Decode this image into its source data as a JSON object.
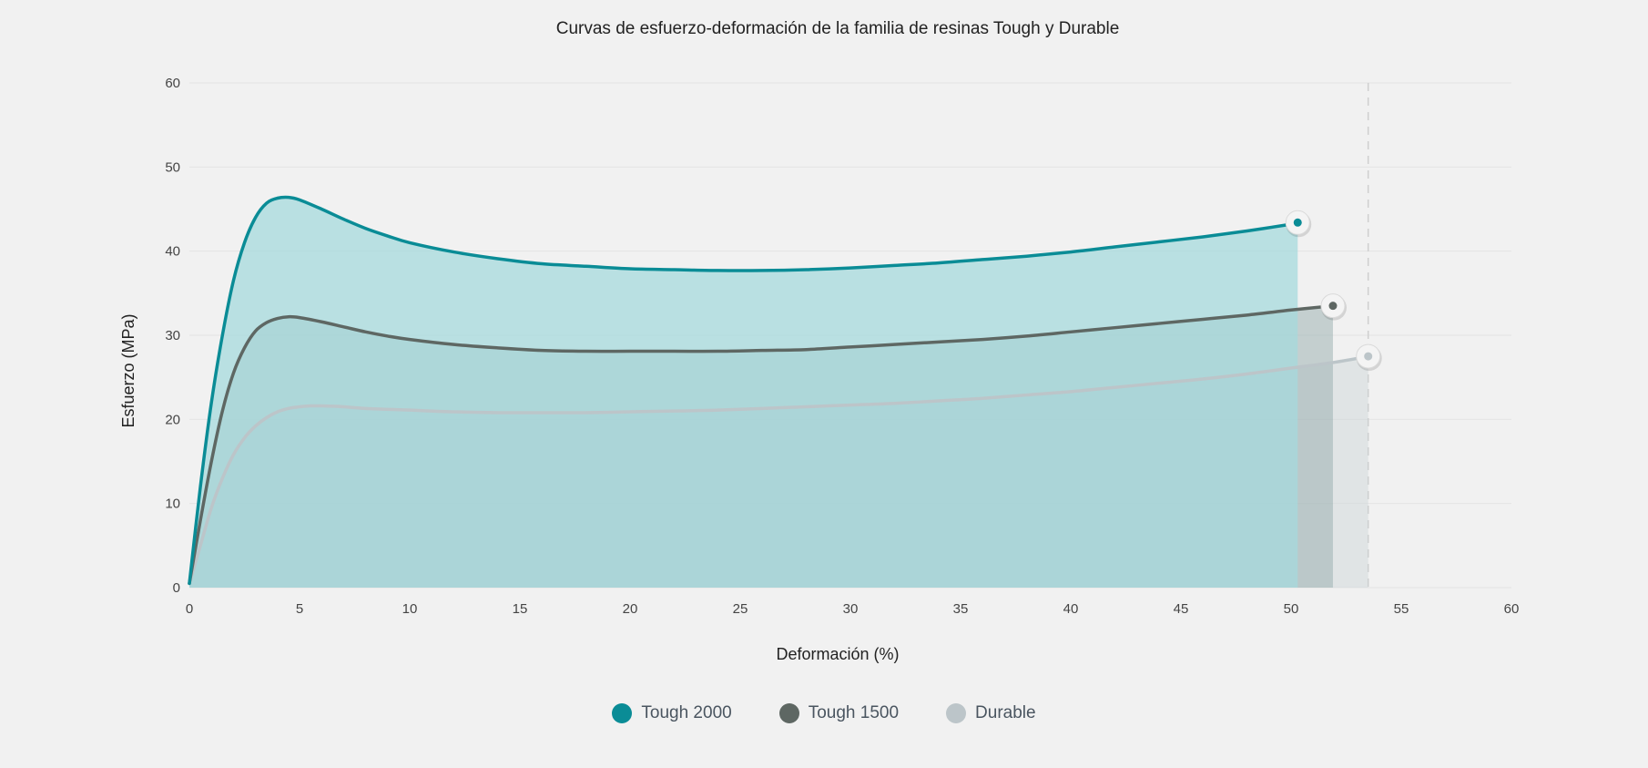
{
  "chart_data": {
    "type": "area",
    "title": "Curvas de esfuerzo-deformación de la familia de resinas Tough y Durable",
    "xlabel": "Deformación (%)",
    "ylabel": "Esfuerzo (MPa)",
    "xlim": [
      0,
      60
    ],
    "ylim": [
      0,
      60
    ],
    "x_ticks": [
      "0",
      "5",
      "10",
      "15",
      "20",
      "25",
      "30",
      "35",
      "40",
      "45",
      "50",
      "55",
      "60"
    ],
    "y_ticks": [
      "0",
      "10",
      "20",
      "30",
      "40",
      "50",
      "60"
    ],
    "grid": "horizontal",
    "legend_position": "bottom",
    "reference_line_x": 53.5,
    "series": [
      {
        "name": "Tough 2000",
        "color": "#0a8c96",
        "fill": "#a6d9dc",
        "fill_opacity": 0.75,
        "x": [
          0,
          0.5,
          1,
          1.5,
          2,
          2.5,
          3,
          3.5,
          4,
          4.5,
          5,
          6,
          7,
          8,
          9,
          10,
          12,
          14,
          16,
          18,
          20,
          22,
          24,
          26,
          28,
          30,
          32,
          34,
          36,
          38,
          40,
          42,
          44,
          46,
          48,
          50,
          50.3
        ],
        "y": [
          0.5,
          12,
          22,
          30,
          36.5,
          41,
          44,
          45.7,
          46.3,
          46.4,
          46.1,
          45,
          43.8,
          42.7,
          41.8,
          41,
          39.9,
          39.1,
          38.5,
          38.2,
          37.9,
          37.8,
          37.7,
          37.7,
          37.8,
          38,
          38.3,
          38.6,
          39,
          39.4,
          39.9,
          40.5,
          41.1,
          41.7,
          42.4,
          43.2,
          43.4
        ],
        "end_marker": true
      },
      {
        "name": "Tough 1500",
        "color": "#5e6763",
        "fill": "#8fa6a6",
        "fill_opacity": 0.45,
        "x": [
          0,
          0.5,
          1,
          1.5,
          2,
          2.5,
          3,
          3.5,
          4,
          4.5,
          5,
          6,
          7,
          8,
          9,
          10,
          12,
          14,
          16,
          18,
          20,
          22,
          24,
          26,
          28,
          30,
          32,
          34,
          36,
          38,
          40,
          42,
          44,
          46,
          48,
          50,
          51.9
        ],
        "y": [
          0.5,
          8,
          15,
          21,
          25.5,
          28.5,
          30.5,
          31.5,
          32,
          32.2,
          32.1,
          31.6,
          31,
          30.4,
          29.9,
          29.5,
          28.9,
          28.5,
          28.2,
          28.1,
          28.1,
          28.1,
          28.1,
          28.2,
          28.3,
          28.6,
          28.9,
          29.2,
          29.5,
          29.9,
          30.4,
          30.9,
          31.4,
          31.9,
          32.4,
          33,
          33.5
        ],
        "end_marker": true
      },
      {
        "name": "Durable",
        "color": "#bcc5c9",
        "fill": "#c9d3d5",
        "fill_opacity": 0.4,
        "x": [
          0,
          0.5,
          1,
          1.5,
          2,
          2.5,
          3,
          3.5,
          4,
          4.5,
          5,
          5.5,
          6,
          7,
          8,
          10,
          12,
          14,
          16,
          18,
          20,
          22,
          24,
          26,
          28,
          30,
          32,
          34,
          36,
          38,
          40,
          42,
          44,
          46,
          48,
          50,
          52,
          53.5
        ],
        "y": [
          0.5,
          5,
          9.5,
          13,
          15.8,
          17.8,
          19.2,
          20.2,
          20.9,
          21.3,
          21.5,
          21.6,
          21.6,
          21.5,
          21.3,
          21.1,
          20.9,
          20.8,
          20.8,
          20.8,
          20.9,
          21,
          21.1,
          21.3,
          21.5,
          21.7,
          21.9,
          22.2,
          22.5,
          22.9,
          23.3,
          23.8,
          24.3,
          24.8,
          25.4,
          26.1,
          26.8,
          27.5
        ],
        "end_marker": true
      }
    ]
  }
}
